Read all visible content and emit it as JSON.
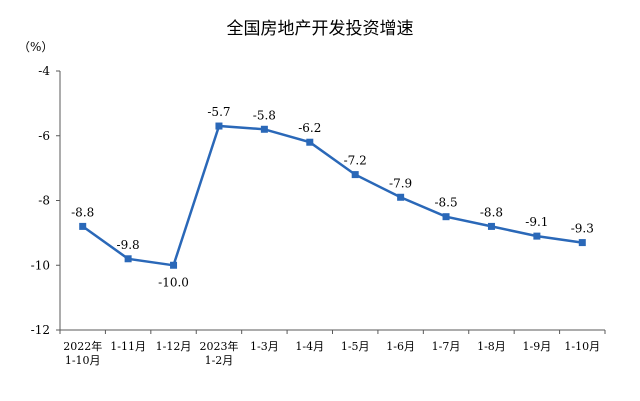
{
  "chart_data": {
    "type": "line",
    "title": "全国房地产开发投资增速",
    "unit": "（%）",
    "categories": [
      [
        "2022年",
        "1-10月"
      ],
      [
        "1-11月"
      ],
      [
        "1-12月"
      ],
      [
        "2023年",
        "1-2月"
      ],
      [
        "1-3月"
      ],
      [
        "1-4月"
      ],
      [
        "1-5月"
      ],
      [
        "1-6月"
      ],
      [
        "1-7月"
      ],
      [
        "1-8月"
      ],
      [
        "1-9月"
      ],
      [
        "1-10月"
      ]
    ],
    "values": [
      -8.8,
      -9.8,
      -10.0,
      -5.7,
      -5.8,
      -6.2,
      -7.2,
      -7.9,
      -8.5,
      -8.8,
      -9.1,
      -9.3
    ],
    "value_labels": [
      "-8.8",
      "-9.8",
      "-10.0",
      "-5.7",
      "-5.8",
      "-6.2",
      "-7.2",
      "-7.9",
      "-8.5",
      "-8.8",
      "-9.1",
      "-9.3"
    ],
    "label_positions": [
      "above",
      "above",
      "below",
      "above",
      "above",
      "above",
      "above",
      "above",
      "above",
      "above",
      "above",
      "above"
    ],
    "ylim": [
      -12,
      -4
    ],
    "yticks": [
      -4,
      -6,
      -8,
      -10,
      -12
    ],
    "ytick_labels": [
      "-4",
      "-6",
      "-8",
      "-10",
      "-12"
    ],
    "grid": false,
    "legend": "none",
    "colors": {
      "line": "#2a68b8",
      "axis": "#595959"
    }
  }
}
